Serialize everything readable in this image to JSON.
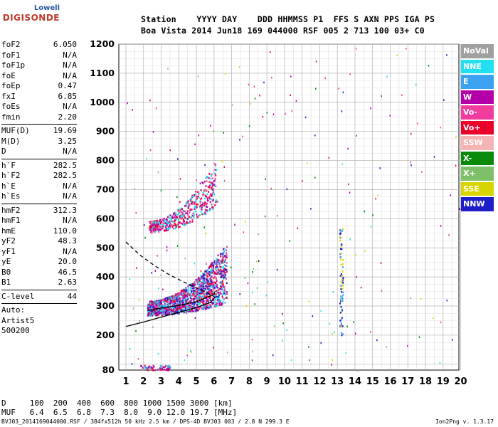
{
  "logo": {
    "top": "Lowell",
    "bottom": "DIGISONDE"
  },
  "header": {
    "labels": "Station    YYYY DAY    DDD HHMMSS P1  FFS S AXN PPS IGA PS",
    "values": "Boa Vista 2014 Jun18 169 044000 RSF 005 2 713 100 03+ C0"
  },
  "params": [
    {
      "name": "foF2",
      "value": "6.050"
    },
    {
      "name": "foF1",
      "value": "N/A"
    },
    {
      "name": "foF1p",
      "value": "N/A"
    },
    {
      "name": "foE",
      "value": "N/A"
    },
    {
      "name": "foEp",
      "value": "0.47"
    },
    {
      "name": "fxI",
      "value": "6.85"
    },
    {
      "name": "foEs",
      "value": "N/A"
    },
    {
      "name": "fmin",
      "value": "2.20"
    },
    {
      "sep": true
    },
    {
      "name": "MUF(D)",
      "value": "19.69"
    },
    {
      "name": "M(D)",
      "value": "3.25"
    },
    {
      "name": "D",
      "value": "N/A"
    },
    {
      "sep": true
    },
    {
      "name": "h`F",
      "value": "282.5"
    },
    {
      "name": "h`F2",
      "value": "282.5"
    },
    {
      "name": "h`E",
      "value": "N/A"
    },
    {
      "name": "h`Es",
      "value": "N/A"
    },
    {
      "sep": true
    },
    {
      "name": "hmF2",
      "value": "312.3"
    },
    {
      "name": "hmF1",
      "value": "N/A"
    },
    {
      "name": "hmE",
      "value": "110.0"
    },
    {
      "name": "yF2",
      "value": "48.3"
    },
    {
      "name": "yF1",
      "value": "N/A"
    },
    {
      "name": "yE",
      "value": "20.0"
    },
    {
      "name": "B0",
      "value": "46.5"
    },
    {
      "name": "B1",
      "value": "2.63"
    },
    {
      "sep": true
    },
    {
      "name": "C-level",
      "value": "44"
    },
    {
      "sep": true
    },
    {
      "name": "Auto:",
      "value": ""
    },
    {
      "name": "Artist5",
      "value": ""
    },
    {
      "name": "500200",
      "value": ""
    }
  ],
  "legend": [
    {
      "label": "NoVal",
      "color": "#a0a0a0"
    },
    {
      "label": "NNE",
      "color": "#22e0f0"
    },
    {
      "label": "E",
      "color": "#3aa2f0"
    },
    {
      "label": "W",
      "color": "#b400a8"
    },
    {
      "label": "Vo-",
      "color": "#f03c9c"
    },
    {
      "label": "Vo+",
      "color": "#e8002a"
    },
    {
      "label": "SSW",
      "color": "#f4b4b4"
    },
    {
      "label": "X-",
      "color": "#0a8a0a"
    },
    {
      "label": "X+",
      "color": "#7ec06a"
    },
    {
      "label": "SSE",
      "color": "#d8d400"
    },
    {
      "label": "NNW",
      "color": "#1e1ec8"
    }
  ],
  "footer": {
    "line1": "D     100  200  400  600  800 1000 1500 3000 [km]",
    "line2": "MUF   6.4  6.5  6.8  7.3  8.0  9.0 12.0 19.7 [MHz]",
    "line3": "BVJ03_2014169044000.RSF / 384fx512h 50 kHz 2.5 km / DPS-4D BVJ03 003 / 2.8 N 299.3 E",
    "version": "Ion2Png v. 1.3.17"
  },
  "chart_data": {
    "type": "scatter",
    "xlim": [
      1,
      20
    ],
    "ylim": [
      80,
      1200
    ],
    "xticks": [
      1,
      2,
      3,
      4,
      5,
      6,
      7,
      8,
      9,
      10,
      11,
      12,
      13,
      14,
      15,
      16,
      17,
      18,
      19,
      20
    ],
    "yticks": [
      80,
      200,
      300,
      400,
      500,
      600,
      700,
      800,
      900,
      1000,
      1100,
      1200
    ],
    "grid": true,
    "clusters": [
      {
        "name": "F2 echo (1-hop)",
        "x_range": [
          2.2,
          6.7
        ],
        "y_range": [
          270,
          520
        ],
        "colors": [
          "#e8002a",
          "#b400a8",
          "#3aa2f0",
          "#22e0f0",
          "#f03c9c",
          "#1e1ec8"
        ]
      },
      {
        "name": "F2 echo (2-hop)",
        "x_range": [
          2.3,
          6.1
        ],
        "y_range": [
          555,
          810
        ],
        "colors": [
          "#b400a8",
          "#e8002a",
          "#f03c9c",
          "#22e0f0"
        ]
      },
      {
        "name": "Low echoes",
        "x_range": [
          1.8,
          3.5
        ],
        "y_range": [
          82,
          98
        ],
        "colors": [
          "#b400a8",
          "#e8002a",
          "#3aa2f0"
        ]
      },
      {
        "name": "Interference 13.2 MHz",
        "x_range": [
          13.1,
          13.3
        ],
        "y_range": [
          200,
          580
        ],
        "colors": [
          "#1e1ec8",
          "#d8d400",
          "#3aa2f0"
        ]
      }
    ],
    "profile_curves": [
      {
        "style": "solid",
        "points": [
          [
            1,
            230
          ],
          [
            2,
            245
          ],
          [
            3,
            262
          ],
          [
            4,
            278
          ],
          [
            5,
            295
          ],
          [
            5.8,
            312.3
          ],
          [
            6.05,
            330
          ]
        ]
      },
      {
        "style": "solid",
        "points": [
          [
            2.2,
            285
          ],
          [
            3,
            293
          ],
          [
            4,
            302
          ],
          [
            5,
            315
          ],
          [
            6,
            340
          ],
          [
            6.05,
            350
          ]
        ]
      },
      {
        "style": "dashed",
        "points": [
          [
            1,
            520
          ],
          [
            1.8,
            475
          ],
          [
            2.6,
            440
          ],
          [
            3.4,
            410
          ],
          [
            4.2,
            385
          ],
          [
            5,
            362
          ],
          [
            5.8,
            340
          ],
          [
            6.05,
            330
          ]
        ]
      }
    ]
  }
}
